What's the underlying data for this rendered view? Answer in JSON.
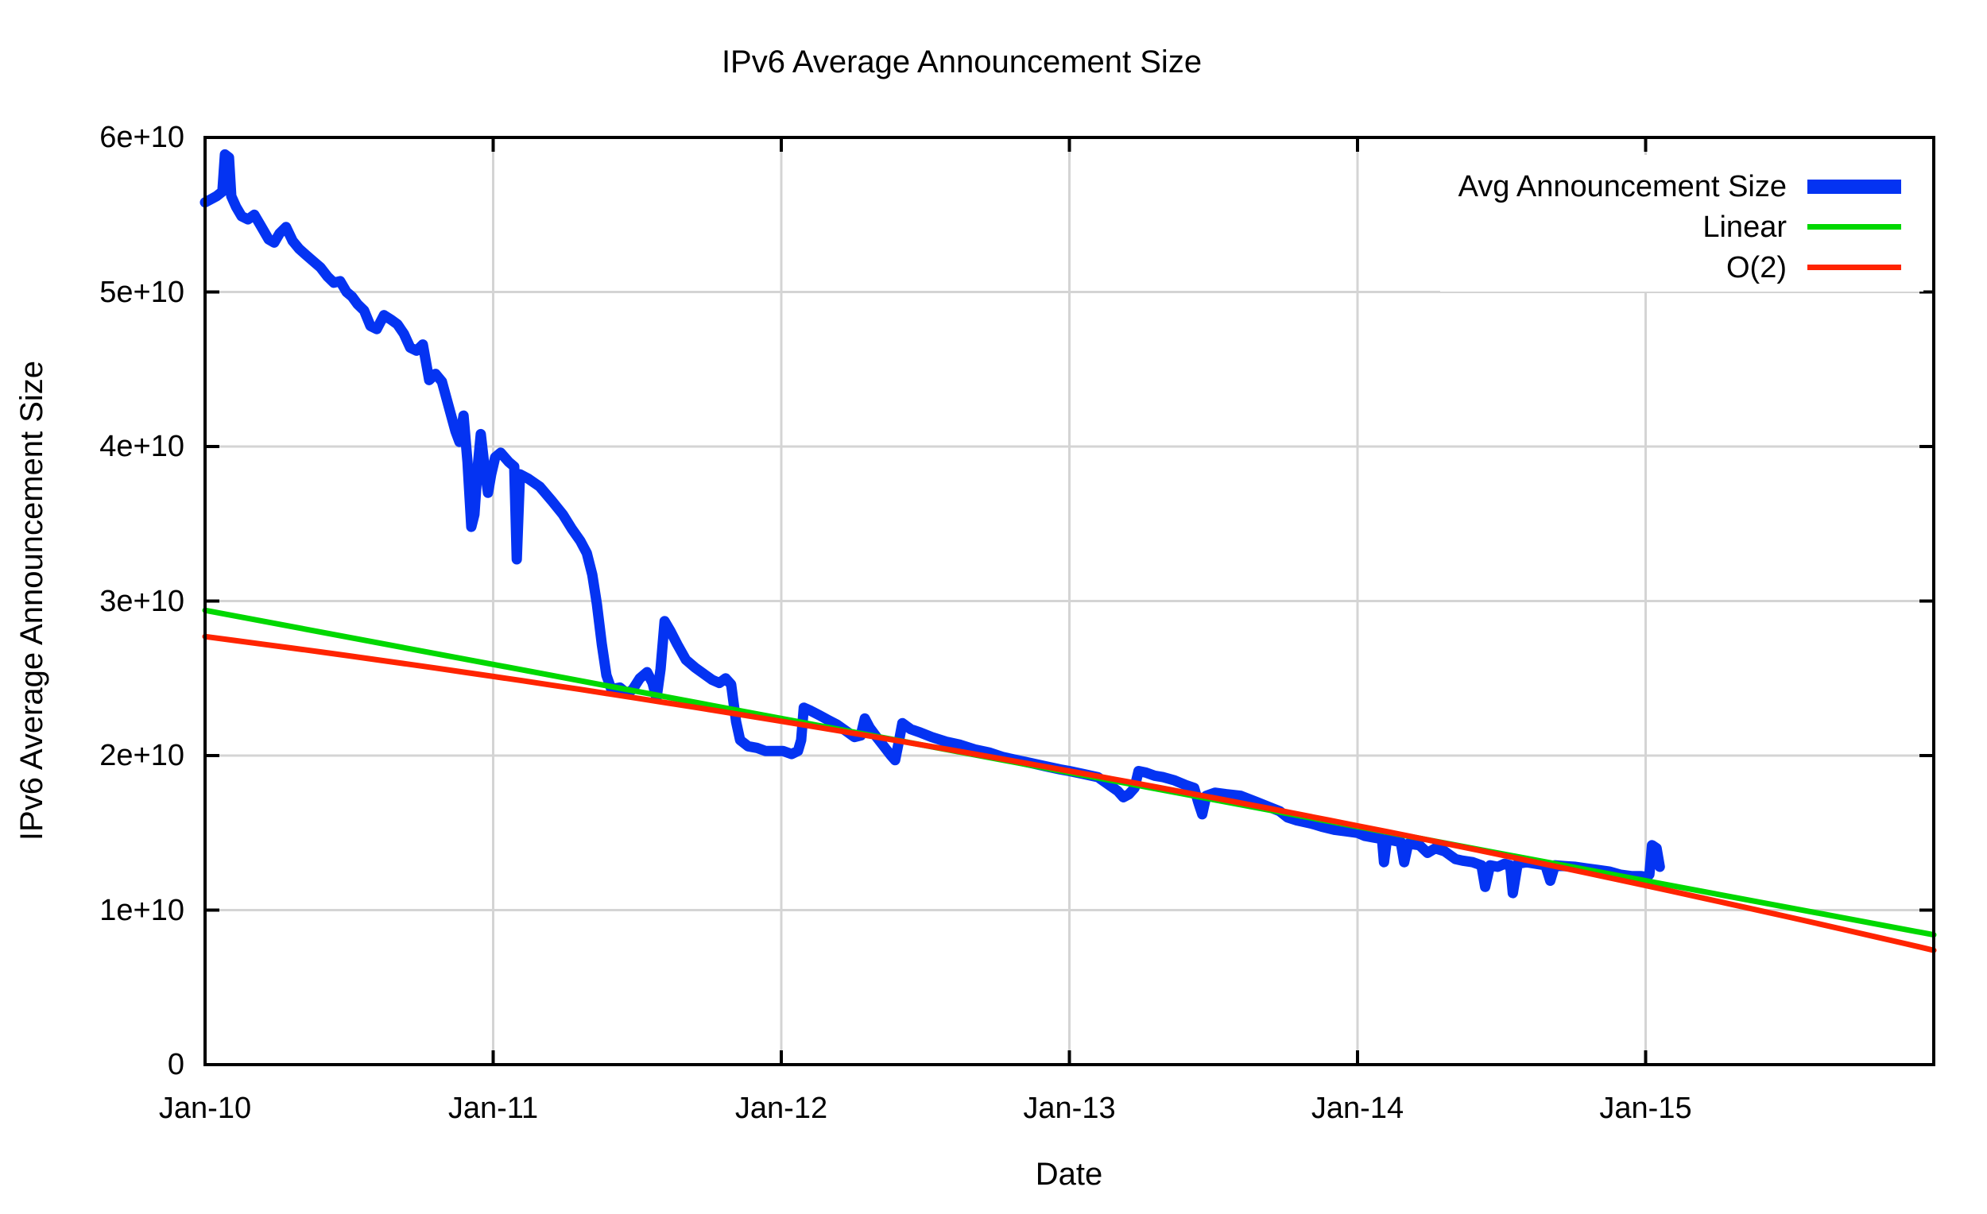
{
  "colors": {
    "background": "#ffffff",
    "grid": "#d4d4d4",
    "border": "#000000",
    "text": "#000000"
  },
  "chart_data": {
    "type": "line",
    "title": "IPv6 Average Announcement Size",
    "xlabel": "Date",
    "ylabel": "IPv6 Average Announcement Size",
    "grid": true,
    "legend_position": "top-right-inside",
    "value_unit": "1e10",
    "x_unit": "years since Jan-2010",
    "x_axis": {
      "min": 0,
      "max": 6,
      "ticks": [
        {
          "t": 0,
          "label": "Jan-10"
        },
        {
          "t": 1,
          "label": "Jan-11"
        },
        {
          "t": 2,
          "label": "Jan-12"
        },
        {
          "t": 3,
          "label": "Jan-13"
        },
        {
          "t": 4,
          "label": "Jan-14"
        },
        {
          "t": 5,
          "label": "Jan-15"
        }
      ]
    },
    "y_axis": {
      "min": 0,
      "max": 6,
      "ticks": [
        {
          "v": 0,
          "label": "0"
        },
        {
          "v": 1,
          "label": "1e+10"
        },
        {
          "v": 2,
          "label": "2e+10"
        },
        {
          "v": 3,
          "label": "3e+10"
        },
        {
          "v": 4,
          "label": "4e+10"
        },
        {
          "v": 5,
          "label": "5e+10"
        },
        {
          "v": 6,
          "label": "6e+10"
        }
      ]
    },
    "series": [
      {
        "name": "Avg Announcement Size",
        "color": "#0433f2",
        "line_width": 13,
        "legend_swatch_height": 18,
        "points": [
          [
            0.0,
            5.58
          ],
          [
            0.02,
            5.6
          ],
          [
            0.04,
            5.62
          ],
          [
            0.06,
            5.65
          ],
          [
            0.069,
            5.89
          ],
          [
            0.083,
            5.87
          ],
          [
            0.091,
            5.62
          ],
          [
            0.108,
            5.55
          ],
          [
            0.127,
            5.49
          ],
          [
            0.149,
            5.47
          ],
          [
            0.171,
            5.5
          ],
          [
            0.193,
            5.43
          ],
          [
            0.221,
            5.34
          ],
          [
            0.24,
            5.32
          ],
          [
            0.259,
            5.38
          ],
          [
            0.281,
            5.42
          ],
          [
            0.304,
            5.33
          ],
          [
            0.326,
            5.28
          ],
          [
            0.35,
            5.24
          ],
          [
            0.375,
            5.2
          ],
          [
            0.4,
            5.16
          ],
          [
            0.425,
            5.1
          ],
          [
            0.447,
            5.06
          ],
          [
            0.469,
            5.07
          ],
          [
            0.491,
            5.0
          ],
          [
            0.51,
            4.97
          ],
          [
            0.53,
            4.92
          ],
          [
            0.552,
            4.88
          ],
          [
            0.574,
            4.78
          ],
          [
            0.596,
            4.76
          ],
          [
            0.621,
            4.85
          ],
          [
            0.646,
            4.82
          ],
          [
            0.668,
            4.79
          ],
          [
            0.69,
            4.73
          ],
          [
            0.712,
            4.64
          ],
          [
            0.734,
            4.62
          ],
          [
            0.756,
            4.66
          ],
          [
            0.778,
            4.43
          ],
          [
            0.8,
            4.47
          ],
          [
            0.822,
            4.42
          ],
          [
            0.85,
            4.23
          ],
          [
            0.869,
            4.1
          ],
          [
            0.883,
            4.03
          ],
          [
            0.897,
            4.2
          ],
          [
            0.911,
            3.9
          ],
          [
            0.924,
            3.48
          ],
          [
            0.935,
            3.56
          ],
          [
            0.946,
            3.86
          ],
          [
            0.957,
            4.08
          ],
          [
            0.971,
            3.85
          ],
          [
            0.982,
            3.7
          ],
          [
            0.993,
            3.82
          ],
          [
            1.007,
            3.93
          ],
          [
            1.026,
            3.96
          ],
          [
            1.054,
            3.9
          ],
          [
            1.073,
            3.87
          ],
          [
            1.082,
            3.27
          ],
          [
            1.093,
            3.82
          ],
          [
            1.123,
            3.79
          ],
          [
            1.162,
            3.74
          ],
          [
            1.203,
            3.65
          ],
          [
            1.242,
            3.56
          ],
          [
            1.272,
            3.47
          ],
          [
            1.302,
            3.39
          ],
          [
            1.325,
            3.31
          ],
          [
            1.344,
            3.17
          ],
          [
            1.36,
            2.98
          ],
          [
            1.377,
            2.72
          ],
          [
            1.393,
            2.52
          ],
          [
            1.41,
            2.43
          ],
          [
            1.44,
            2.44
          ],
          [
            1.465,
            2.4
          ],
          [
            1.485,
            2.43
          ],
          [
            1.509,
            2.5
          ],
          [
            1.534,
            2.54
          ],
          [
            1.553,
            2.47
          ],
          [
            1.567,
            2.37
          ],
          [
            1.581,
            2.56
          ],
          [
            1.595,
            2.87
          ],
          [
            1.614,
            2.81
          ],
          [
            1.639,
            2.72
          ],
          [
            1.669,
            2.62
          ],
          [
            1.7,
            2.57
          ],
          [
            1.73,
            2.53
          ],
          [
            1.76,
            2.49
          ],
          [
            1.785,
            2.47
          ],
          [
            1.807,
            2.5
          ],
          [
            1.826,
            2.46
          ],
          [
            1.843,
            2.22
          ],
          [
            1.857,
            2.1
          ],
          [
            1.885,
            2.06
          ],
          [
            1.915,
            2.05
          ],
          [
            1.945,
            2.03
          ],
          [
            1.976,
            2.03
          ],
          [
            2.006,
            2.03
          ],
          [
            2.036,
            2.01
          ],
          [
            2.058,
            2.03
          ],
          [
            2.069,
            2.1
          ],
          [
            2.078,
            2.31
          ],
          [
            2.102,
            2.29
          ],
          [
            2.133,
            2.26
          ],
          [
            2.163,
            2.23
          ],
          [
            2.194,
            2.2
          ],
          [
            2.224,
            2.16
          ],
          [
            2.254,
            2.12
          ],
          [
            2.276,
            2.13
          ],
          [
            2.29,
            2.24
          ],
          [
            2.307,
            2.18
          ],
          [
            2.331,
            2.12
          ],
          [
            2.356,
            2.06
          ],
          [
            2.381,
            2.0
          ],
          [
            2.395,
            1.97
          ],
          [
            2.409,
            2.1
          ],
          [
            2.42,
            2.21
          ],
          [
            2.45,
            2.17
          ],
          [
            2.481,
            2.15
          ],
          [
            2.522,
            2.12
          ],
          [
            2.572,
            2.09
          ],
          [
            2.621,
            2.07
          ],
          [
            2.671,
            2.04
          ],
          [
            2.721,
            2.02
          ],
          [
            2.77,
            1.99
          ],
          [
            2.82,
            1.97
          ],
          [
            2.87,
            1.95
          ],
          [
            2.919,
            1.93
          ],
          [
            2.969,
            1.91
          ],
          [
            3.0,
            1.9
          ],
          [
            3.05,
            1.88
          ],
          [
            3.099,
            1.86
          ],
          [
            3.138,
            1.81
          ],
          [
            3.168,
            1.77
          ],
          [
            3.187,
            1.73
          ],
          [
            3.207,
            1.75
          ],
          [
            3.226,
            1.79
          ],
          [
            3.24,
            1.9
          ],
          [
            3.265,
            1.89
          ],
          [
            3.295,
            1.87
          ],
          [
            3.326,
            1.86
          ],
          [
            3.364,
            1.84
          ],
          [
            3.403,
            1.81
          ],
          [
            3.433,
            1.79
          ],
          [
            3.447,
            1.7
          ],
          [
            3.461,
            1.62
          ],
          [
            3.475,
            1.74
          ],
          [
            3.505,
            1.76
          ],
          [
            3.544,
            1.75
          ],
          [
            3.594,
            1.74
          ],
          [
            3.65,
            1.7
          ],
          [
            3.703,
            1.66
          ],
          [
            3.73,
            1.64
          ],
          [
            3.757,
            1.6
          ],
          [
            3.79,
            1.58
          ],
          [
            3.84,
            1.56
          ],
          [
            3.876,
            1.54
          ],
          [
            3.92,
            1.52
          ],
          [
            3.96,
            1.51
          ],
          [
            4.0,
            1.5
          ],
          [
            4.025,
            1.48
          ],
          [
            4.055,
            1.47
          ],
          [
            4.085,
            1.46
          ],
          [
            4.092,
            1.31
          ],
          [
            4.102,
            1.46
          ],
          [
            4.125,
            1.45
          ],
          [
            4.15,
            1.44
          ],
          [
            4.162,
            1.31
          ],
          [
            4.176,
            1.43
          ],
          [
            4.215,
            1.42
          ],
          [
            4.243,
            1.37
          ],
          [
            4.27,
            1.4
          ],
          [
            4.303,
            1.38
          ],
          [
            4.34,
            1.33
          ],
          [
            4.365,
            1.32
          ],
          [
            4.4,
            1.31
          ],
          [
            4.43,
            1.29
          ],
          [
            4.443,
            1.15
          ],
          [
            4.46,
            1.29
          ],
          [
            4.487,
            1.28
          ],
          [
            4.51,
            1.3
          ],
          [
            4.53,
            1.29
          ],
          [
            4.539,
            1.11
          ],
          [
            4.556,
            1.3
          ],
          [
            4.586,
            1.31
          ],
          [
            4.62,
            1.3
          ],
          [
            4.652,
            1.29
          ],
          [
            4.669,
            1.19
          ],
          [
            4.685,
            1.29
          ],
          [
            4.718,
            1.285
          ],
          [
            4.757,
            1.28
          ],
          [
            4.795,
            1.27
          ],
          [
            4.834,
            1.26
          ],
          [
            4.873,
            1.25
          ],
          [
            4.911,
            1.23
          ],
          [
            4.95,
            1.22
          ],
          [
            4.983,
            1.22
          ],
          [
            5.005,
            1.215
          ],
          [
            5.013,
            1.23
          ],
          [
            5.022,
            1.42
          ],
          [
            5.038,
            1.4
          ],
          [
            5.049,
            1.28
          ]
        ]
      },
      {
        "name": "Linear",
        "color": "#00d800",
        "line_width": 7,
        "legend_swatch_height": 7,
        "fit": "linear",
        "points": [
          [
            0,
            2.94
          ],
          [
            6,
            0.84
          ]
        ]
      },
      {
        "name": "O(2)",
        "color": "#ff2400",
        "line_width": 7,
        "legend_swatch_height": 7,
        "fit": "quadratic",
        "points": [
          [
            0,
            2.77
          ],
          [
            3,
            1.9
          ],
          [
            6,
            0.74
          ]
        ]
      }
    ]
  }
}
